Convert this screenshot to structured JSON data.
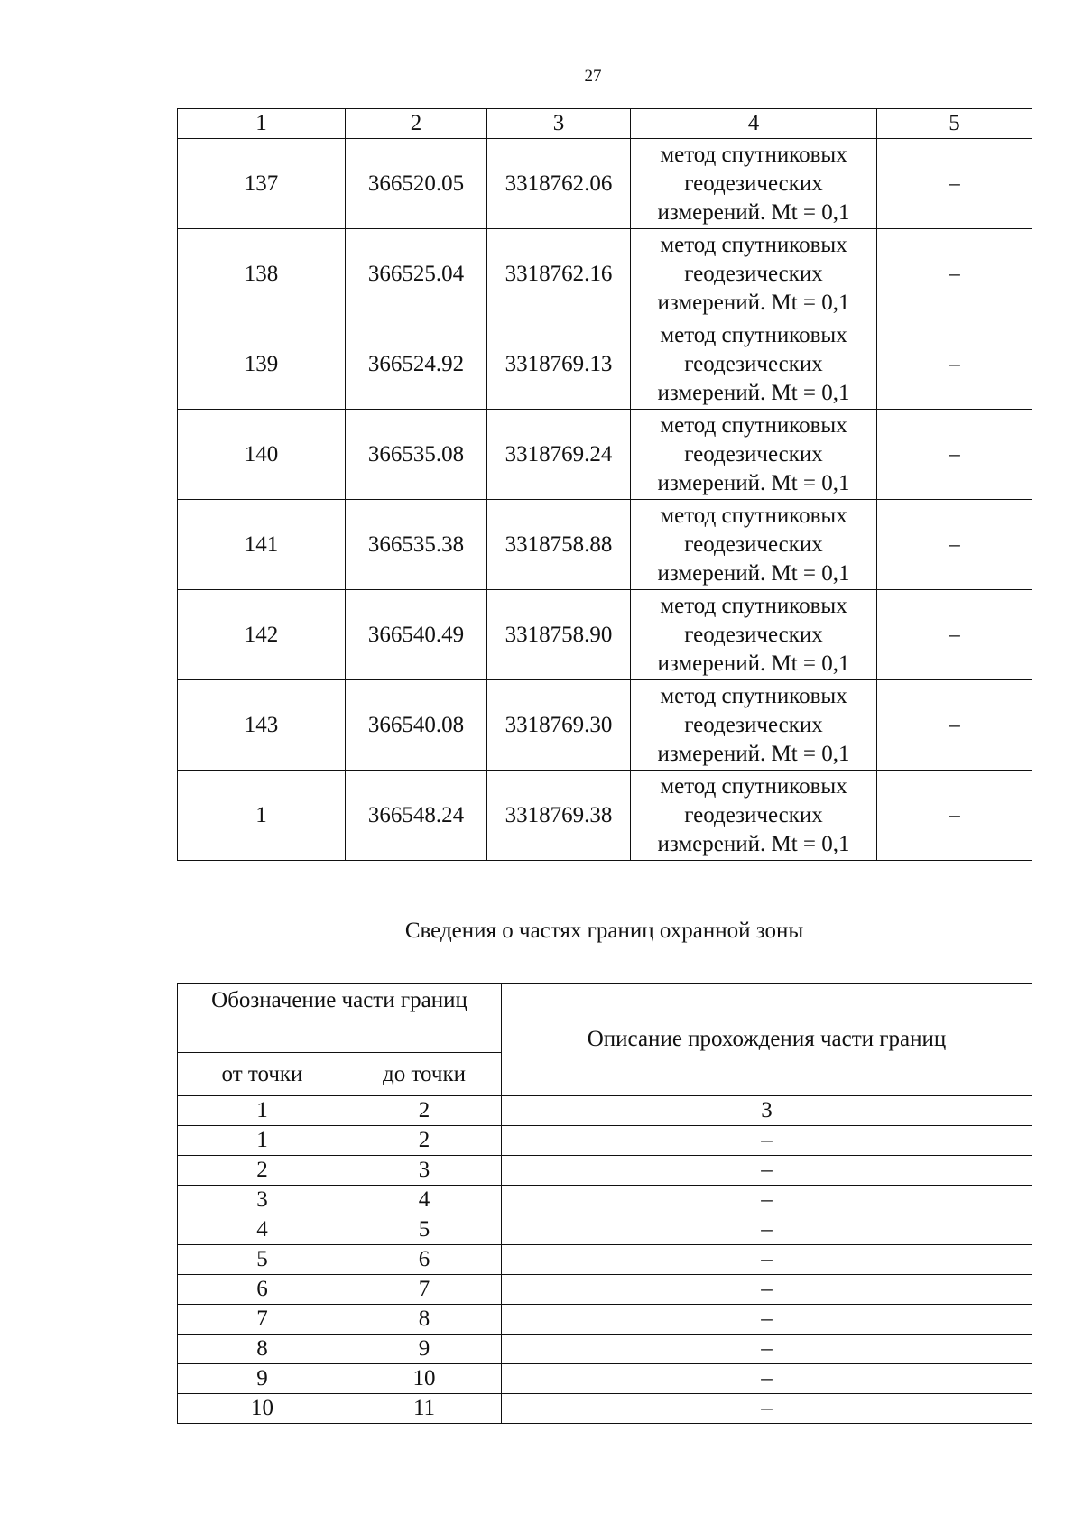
{
  "page_number": "27",
  "table1": {
    "headers": [
      "1",
      "2",
      "3",
      "4",
      "5"
    ],
    "rows": [
      [
        "137",
        "366520.05",
        "3318762.06",
        "метод спутниковых геодезических измерений. Mt = 0,1",
        "–"
      ],
      [
        "138",
        "366525.04",
        "3318762.16",
        "метод спутниковых геодезических измерений. Mt = 0,1",
        "–"
      ],
      [
        "139",
        "366524.92",
        "3318769.13",
        "метод спутниковых геодезических измерений. Mt = 0,1",
        "–"
      ],
      [
        "140",
        "366535.08",
        "3318769.24",
        "метод спутниковых геодезических измерений. Mt = 0,1",
        "–"
      ],
      [
        "141",
        "366535.38",
        "3318758.88",
        "метод спутниковых геодезических измерений. Mt = 0,1",
        "–"
      ],
      [
        "142",
        "366540.49",
        "3318758.90",
        "метод спутниковых геодезических измерений. Mt = 0,1",
        "–"
      ],
      [
        "143",
        "366540.08",
        "3318769.30",
        "метод спутниковых геодезических измерений. Mt = 0,1",
        "–"
      ],
      [
        "1",
        "366548.24",
        "3318769.38",
        "метод спутниковых геодезических измерений. Mt = 0,1",
        "–"
      ]
    ]
  },
  "section_title": "Сведения о частях границ охранной зоны",
  "table2": {
    "group_header": "Обозначение части границ",
    "description_header": "Описание прохождения части границ",
    "from_header": "от точки",
    "to_header": "до точки",
    "numbering": [
      "1",
      "2",
      "3"
    ],
    "rows": [
      [
        "1",
        "2",
        "–"
      ],
      [
        "2",
        "3",
        "–"
      ],
      [
        "3",
        "4",
        "–"
      ],
      [
        "4",
        "5",
        "–"
      ],
      [
        "5",
        "6",
        "–"
      ],
      [
        "6",
        "7",
        "–"
      ],
      [
        "7",
        "8",
        "–"
      ],
      [
        "8",
        "9",
        "–"
      ],
      [
        "9",
        "10",
        "–"
      ],
      [
        "10",
        "11",
        "–"
      ]
    ]
  }
}
